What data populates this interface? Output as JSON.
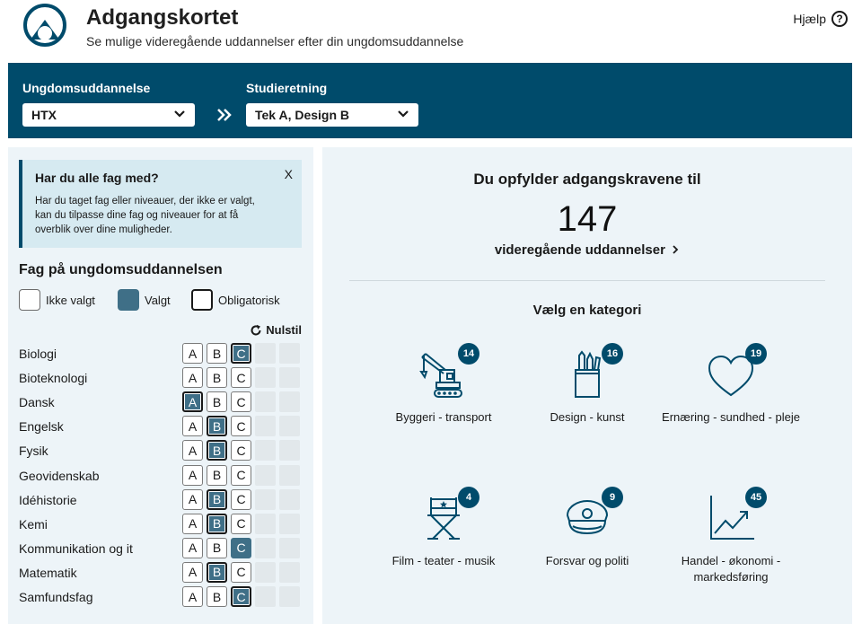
{
  "header": {
    "title": "Adgangskortet",
    "subtitle": "Se mulige videregående uddannelser efter din ungdomsuddannelse",
    "help_label": "Hjælp",
    "help_icon": "?"
  },
  "filters": {
    "education_label": "Ungdomsuddannelse",
    "education_value": "HTX",
    "direction_label": "Studieretning",
    "direction_value": "Tek A, Design B"
  },
  "info_box": {
    "title": "Har du alle fag med?",
    "close": "X",
    "text": "Har du taget fag eller niveauer, der ikke er valgt, kan du tilpasse dine fag og niveauer for at få overblik over dine muligheder."
  },
  "subjects_section": {
    "title": "Fag på ungdomsuddannelsen",
    "legend": {
      "not_selected": "Ikke valgt",
      "selected": "Valgt",
      "required": "Obligatorisk"
    },
    "reset_label": "Nulstil",
    "level_letters": [
      "A",
      "B",
      "C"
    ],
    "subjects": [
      {
        "name": "Biologi",
        "selected": "C",
        "required": true
      },
      {
        "name": "Bioteknologi",
        "selected": "",
        "required": false
      },
      {
        "name": "Dansk",
        "selected": "A",
        "required": true
      },
      {
        "name": "Engelsk",
        "selected": "B",
        "required": true
      },
      {
        "name": "Fysik",
        "selected": "B",
        "required": true
      },
      {
        "name": "Geovidenskab",
        "selected": "",
        "required": false
      },
      {
        "name": "Idéhistorie",
        "selected": "B",
        "required": true
      },
      {
        "name": "Kemi",
        "selected": "B",
        "required": true
      },
      {
        "name": "Kommunikation og it",
        "selected": "C",
        "required": false
      },
      {
        "name": "Matematik",
        "selected": "B",
        "required": true
      },
      {
        "name": "Samfundsfag",
        "selected": "C",
        "required": true
      }
    ]
  },
  "result": {
    "title": "Du opfylder adgangskravene til",
    "count": "147",
    "link_label": "videregående uddannelser",
    "link_icon": "chevron-right-icon"
  },
  "categories": {
    "heading": "Vælg en kategori",
    "items": [
      {
        "label": "Byggeri - transport",
        "count": "14",
        "icon": "crane-icon"
      },
      {
        "label": "Design - kunst",
        "count": "16",
        "icon": "pencil-cup-icon"
      },
      {
        "label": "Ernæring - sundhed - pleje",
        "count": "19",
        "icon": "heart-icon"
      },
      {
        "label": "Film - teater - musik",
        "count": "4",
        "icon": "director-chair-icon"
      },
      {
        "label": "Forsvar og politi",
        "count": "9",
        "icon": "police-cap-icon"
      },
      {
        "label": "Handel - økonomi - markedsføring",
        "count": "45",
        "icon": "line-chart-icon"
      }
    ]
  },
  "colors": {
    "brand": "#004b6b",
    "selected_level": "#3f6f87",
    "panel_bg": "#edf4f8",
    "info_bg": "#d6eaf1"
  }
}
